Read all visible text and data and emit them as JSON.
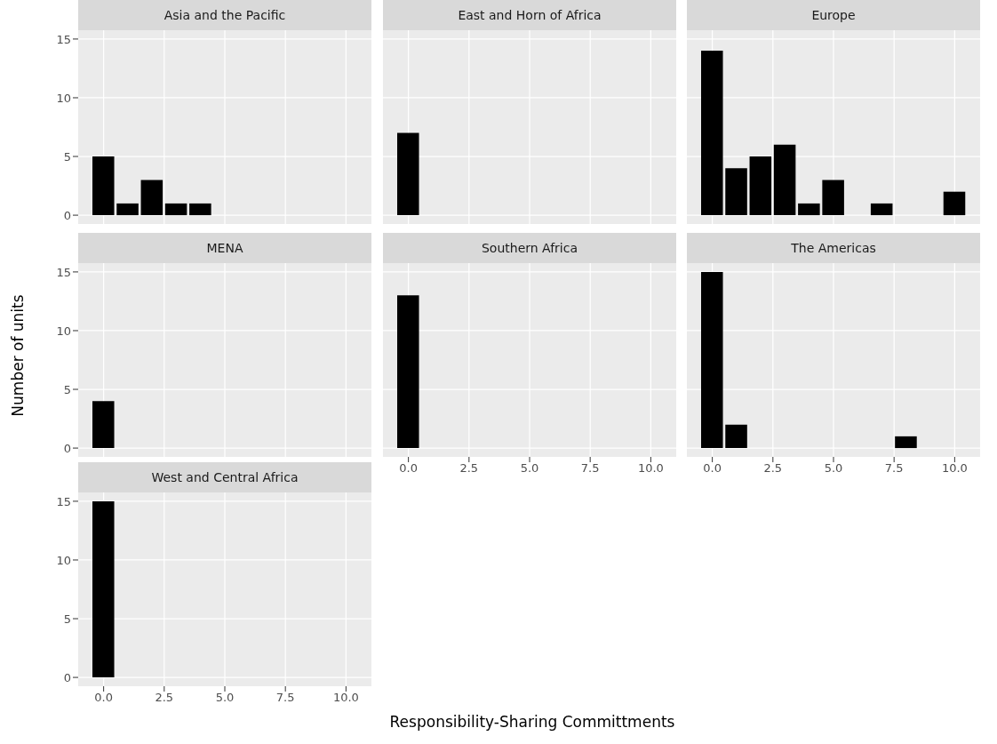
{
  "chart_data": [
    {
      "type": "histogram",
      "title": "Asia and the Pacific",
      "ylabel": "Number of units",
      "bins": [
        -0.5,
        0.5,
        1.5,
        2.5,
        3.5,
        4.5,
        5.5,
        6.5,
        7.5,
        8.5,
        9.5,
        10.5
      ],
      "values": [
        5,
        1,
        3,
        1,
        1,
        0,
        0,
        0,
        0,
        0,
        0
      ],
      "color": "#000000",
      "xlim": [
        -1.05,
        11.05
      ],
      "xticks": [
        0,
        2.5,
        5,
        7.5,
        10
      ],
      "ylim": [
        -0.75,
        15.75
      ],
      "yticks": [
        0,
        5,
        10,
        15
      ],
      "grid": true,
      "tick_labels": "y"
    },
    {
      "type": "histogram",
      "title": "East and Horn of Africa",
      "bins": [
        -0.5,
        0.5,
        1.5,
        2.5,
        3.5,
        4.5,
        5.5,
        6.5,
        7.5,
        8.5,
        9.5,
        10.5
      ],
      "values": [
        7,
        0,
        0,
        0,
        0,
        0,
        0,
        0,
        0,
        0,
        0
      ],
      "color": "#000000",
      "xlim": [
        -1.05,
        11.05
      ],
      "xticks": [
        0,
        2.5,
        5,
        7.5,
        10
      ],
      "ylim": [
        -0.75,
        15.75
      ],
      "yticks": [
        0,
        5,
        10,
        15
      ],
      "grid": true,
      "tick_labels": false
    },
    {
      "type": "histogram",
      "title": "Europe",
      "bins": [
        -0.5,
        0.5,
        1.5,
        2.5,
        3.5,
        4.5,
        5.5,
        6.5,
        7.5,
        8.5,
        9.5,
        10.5
      ],
      "values": [
        14,
        4,
        5,
        6,
        1,
        3,
        0,
        1,
        0,
        0,
        2
      ],
      "color": "#000000",
      "xlim": [
        -1.05,
        11.05
      ],
      "xticks": [
        0,
        2.5,
        5,
        7.5,
        10
      ],
      "ylim": [
        -0.75,
        15.75
      ],
      "yticks": [
        0,
        5,
        10,
        15
      ],
      "grid": true,
      "tick_labels": false
    },
    {
      "type": "histogram",
      "title": "MENA",
      "bins": [
        -0.5,
        0.5,
        1.5,
        2.5,
        3.5,
        4.5,
        5.5,
        6.5,
        7.5,
        8.5,
        9.5,
        10.5
      ],
      "values": [
        4,
        0,
        0,
        0,
        0,
        0,
        0,
        0,
        0,
        0,
        0
      ],
      "color": "#000000",
      "xlim": [
        -1.05,
        11.05
      ],
      "xticks": [
        0,
        2.5,
        5,
        7.5,
        10
      ],
      "ylim": [
        -0.75,
        15.75
      ],
      "yticks": [
        0,
        5,
        10,
        15
      ],
      "grid": true,
      "tick_labels": "y"
    },
    {
      "type": "histogram",
      "title": "Southern Africa",
      "bins": [
        -0.5,
        0.5,
        1.5,
        2.5,
        3.5,
        4.5,
        5.5,
        6.5,
        7.5,
        8.5,
        9.5,
        10.5
      ],
      "values": [
        13,
        0,
        0,
        0,
        0,
        0,
        0,
        0,
        0,
        0,
        0
      ],
      "color": "#000000",
      "xlim": [
        -1.05,
        11.05
      ],
      "xticks": [
        {
          "value": 0,
          "label": "0.0"
        },
        {
          "value": 2.5,
          "label": "2.5"
        },
        {
          "value": 5,
          "label": "5.0"
        },
        {
          "value": 7.5,
          "label": "7.5"
        },
        {
          "value": 10,
          "label": "10.0"
        }
      ],
      "ylim": [
        -0.75,
        15.75
      ],
      "yticks": [
        0,
        5,
        10,
        15
      ],
      "grid": true,
      "tick_labels": "x"
    },
    {
      "type": "histogram",
      "title": "The Americas",
      "bins": [
        -0.5,
        0.5,
        1.5,
        2.5,
        3.5,
        4.5,
        5.5,
        6.5,
        7.5,
        8.5,
        9.5,
        10.5
      ],
      "values": [
        15,
        2,
        0,
        0,
        0,
        0,
        0,
        0,
        1,
        0,
        0
      ],
      "color": "#000000",
      "xlim": [
        -1.05,
        11.05
      ],
      "xticks": [
        {
          "value": 0,
          "label": "0.0"
        },
        {
          "value": 2.5,
          "label": "2.5"
        },
        {
          "value": 5,
          "label": "5.0"
        },
        {
          "value": 7.5,
          "label": "7.5"
        },
        {
          "value": 10,
          "label": "10.0"
        }
      ],
      "ylim": [
        -0.75,
        15.75
      ],
      "yticks": [
        0,
        5,
        10,
        15
      ],
      "grid": true,
      "tick_labels": "x"
    },
    {
      "type": "histogram",
      "title": "West and Central Africa",
      "xlabel": "Responsibility-Sharing Committments",
      "bins": [
        -0.5,
        0.5,
        1.5,
        2.5,
        3.5,
        4.5,
        5.5,
        6.5,
        7.5,
        8.5,
        9.5,
        10.5
      ],
      "values": [
        15,
        0,
        0,
        0,
        0,
        0,
        0,
        0,
        0,
        0,
        0
      ],
      "color": "#000000",
      "xlim": [
        -1.05,
        11.05
      ],
      "xticks": [
        {
          "value": 0,
          "label": "0.0"
        },
        {
          "value": 2.5,
          "label": "2.5"
        },
        {
          "value": 5,
          "label": "5.0"
        },
        {
          "value": 7.5,
          "label": "7.5"
        },
        {
          "value": 10,
          "label": "10.0"
        }
      ],
      "ylim": [
        -0.75,
        15.75
      ],
      "yticks": [
        0,
        5,
        10,
        15
      ],
      "grid": true
    }
  ]
}
